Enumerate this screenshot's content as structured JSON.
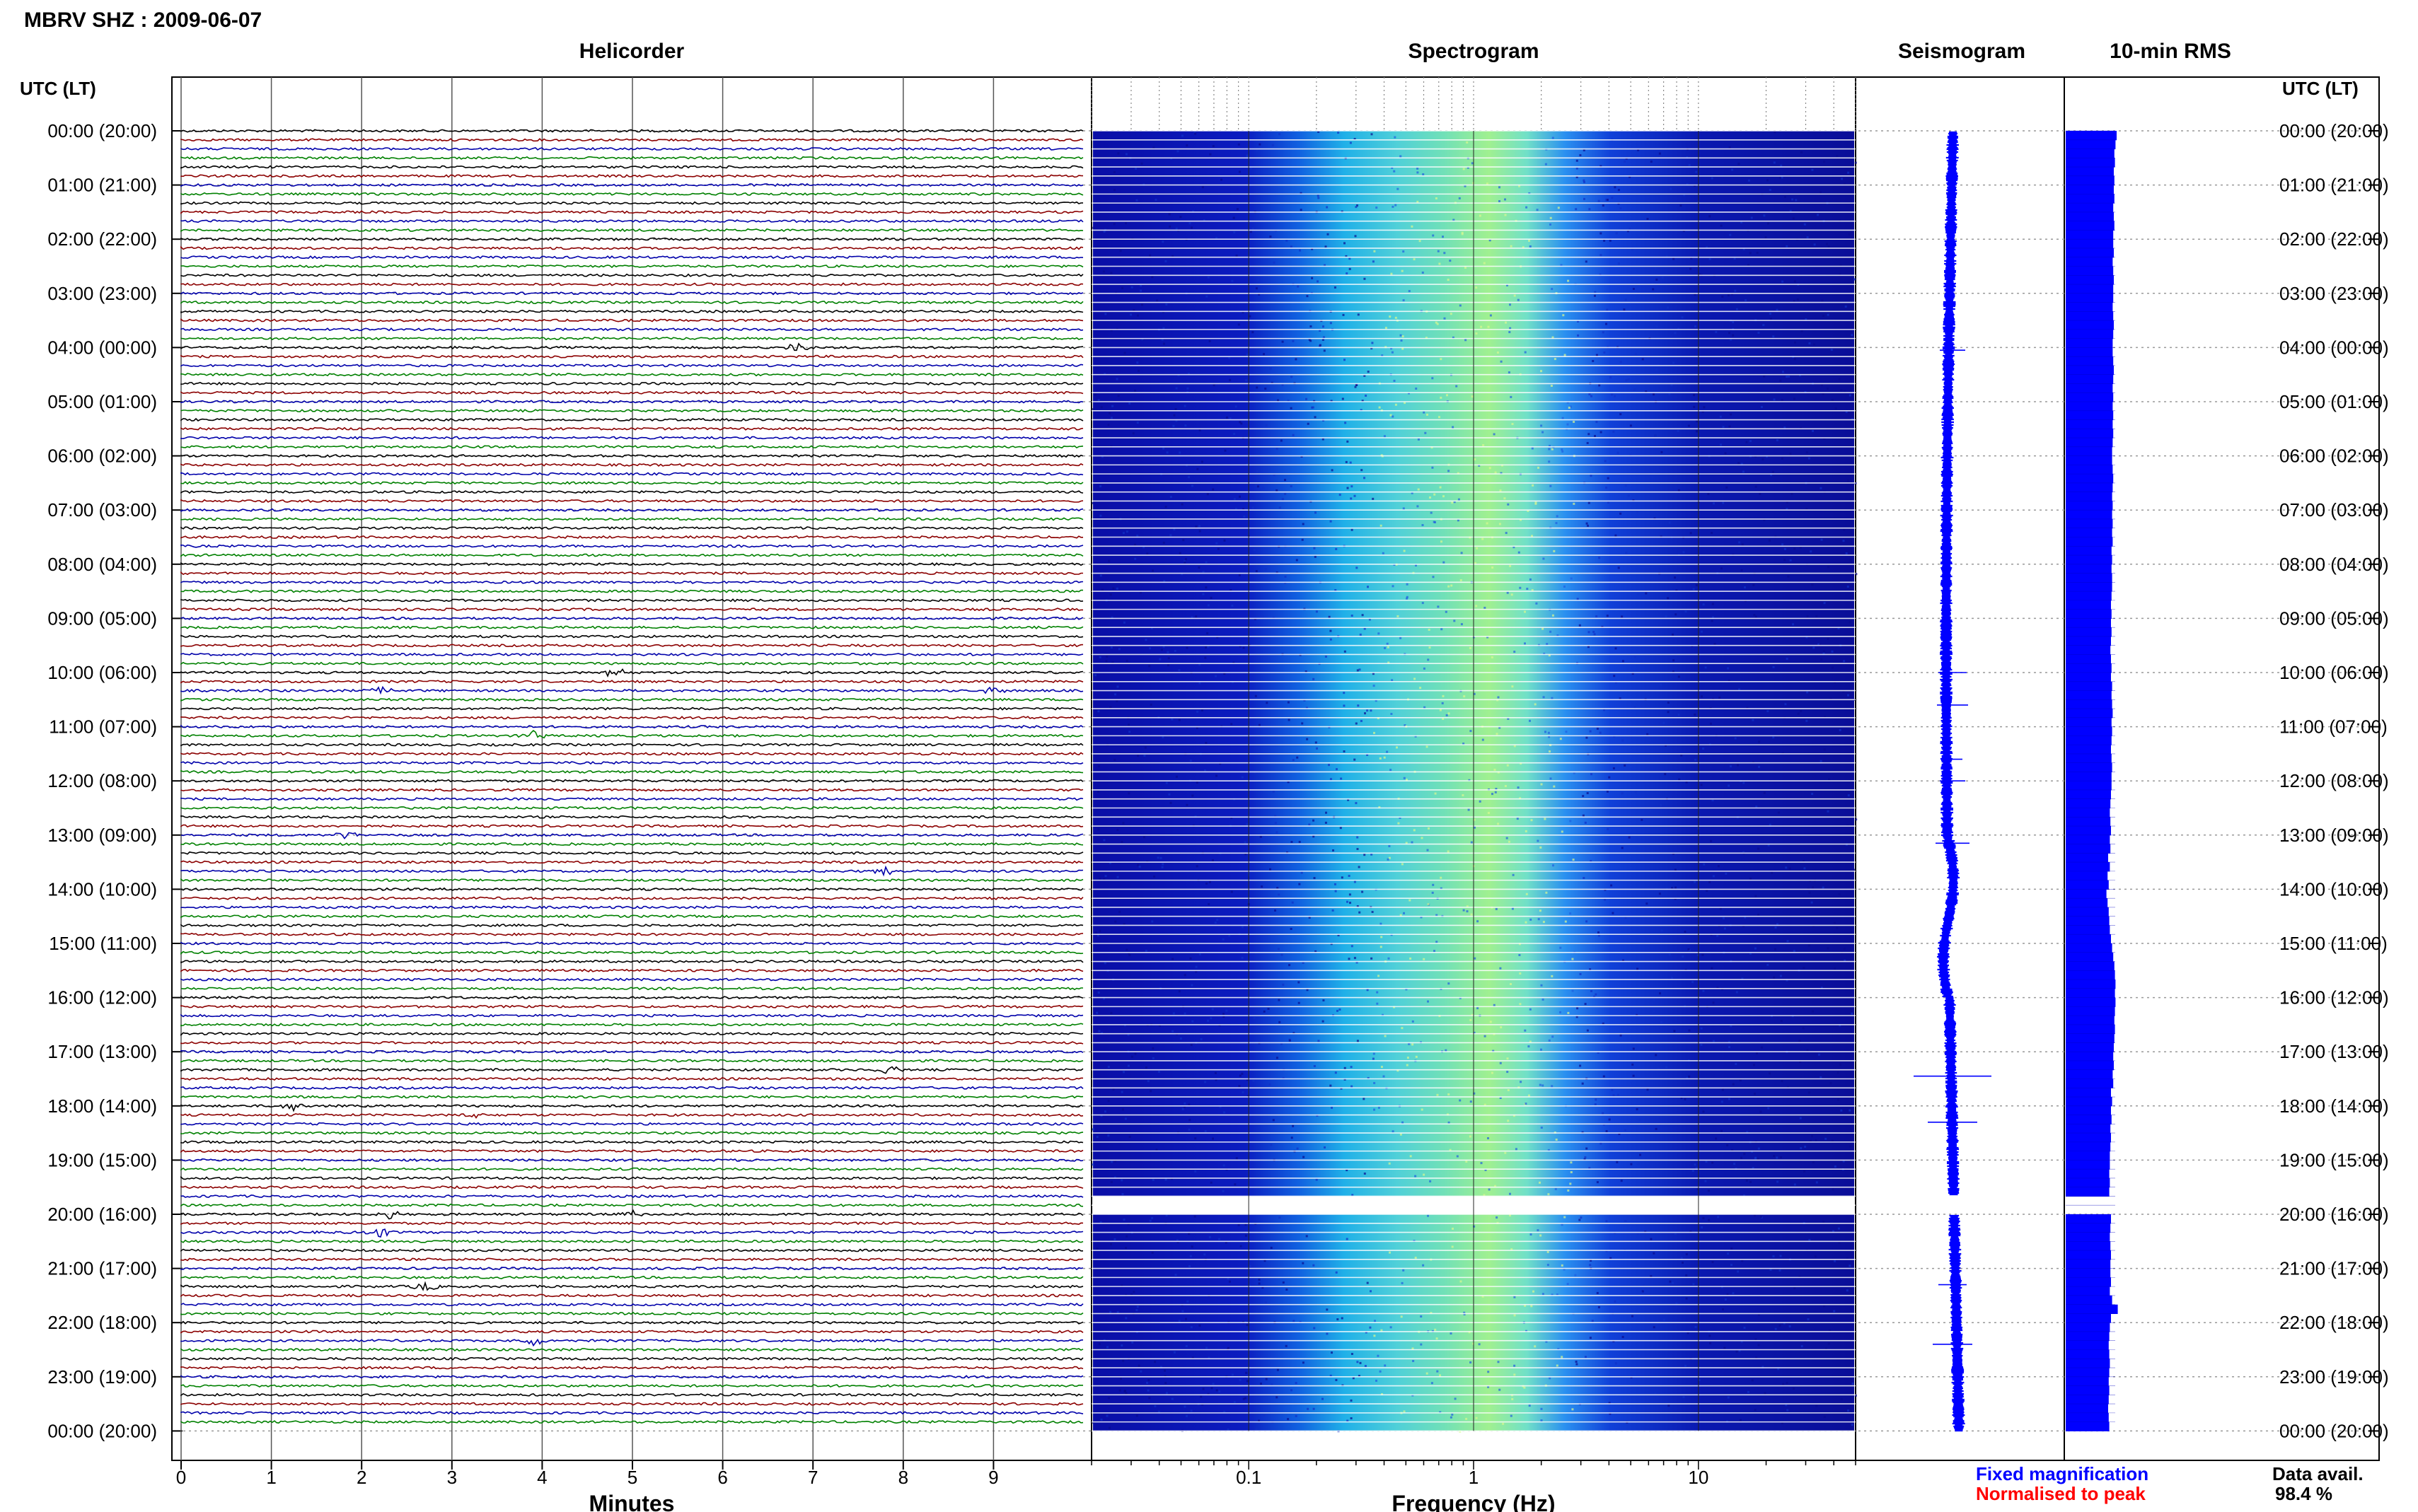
{
  "title": "MBRV SHZ : 2009-06-07",
  "panels": {
    "helicorder": "Helicorder",
    "spectrogram": "Spectrogram",
    "seismogram": "Seismogram",
    "rms": "10-min RMS"
  },
  "time_axis_header_left": "UTC (LT)",
  "time_axis_header_right": "UTC (LT)",
  "time_labels": [
    "00:00 (20:00)",
    "01:00 (21:00)",
    "02:00 (22:00)",
    "03:00 (23:00)",
    "04:00 (00:00)",
    "05:00 (01:00)",
    "06:00 (02:00)",
    "07:00 (03:00)",
    "08:00 (04:00)",
    "09:00 (05:00)",
    "10:00 (06:00)",
    "11:00 (07:00)",
    "12:00 (08:00)",
    "13:00 (09:00)",
    "14:00 (10:00)",
    "15:00 (11:00)",
    "16:00 (12:00)",
    "17:00 (13:00)",
    "18:00 (14:00)",
    "19:00 (15:00)",
    "20:00 (16:00)",
    "21:00 (17:00)",
    "22:00 (18:00)",
    "23:00 (19:00)",
    "00:00 (20:00)"
  ],
  "x_axes": {
    "helicorder": {
      "label": "Minutes",
      "ticks": [
        "0",
        "1",
        "2",
        "3",
        "4",
        "5",
        "6",
        "7",
        "8",
        "9"
      ]
    },
    "spectrogram": {
      "label": "Frequency (Hz)",
      "ticks": [
        "0.1",
        "1",
        "10"
      ]
    }
  },
  "legend": {
    "fixed": "Fixed magnification",
    "normalised": "Normalised to peak",
    "fixed_color": "#0000ff",
    "normalised_color": "#ff0000"
  },
  "data_availability": {
    "label": "Data avail.",
    "value": "98.4 %"
  },
  "colors": {
    "trace_cycle": [
      "#000000",
      "#8b0000",
      "#0000aa",
      "#008000"
    ],
    "spectrogram_low": "#0a10a0",
    "spectrogram_high": "#a8f080",
    "rms_fill": "#0000ff"
  },
  "chart_data": [
    {
      "type": "line",
      "name_panel": "Helicorder",
      "xlabel": "Minutes",
      "xlim": [
        0,
        10
      ],
      "traces_per_hour": 6,
      "hours": 24,
      "events": [
        {
          "hour": 4.0,
          "minute": 6.8
        },
        {
          "hour": 10.0,
          "minute": 4.8
        },
        {
          "hour": 10.33,
          "minute": 2.2
        },
        {
          "hour": 10.33,
          "minute": 9.0
        },
        {
          "hour": 11.17,
          "minute": 3.9
        },
        {
          "hour": 13.0,
          "minute": 1.85
        },
        {
          "hour": 13.67,
          "minute": 7.8
        },
        {
          "hour": 17.33,
          "minute": 7.85
        },
        {
          "hour": 18.0,
          "minute": 1.25
        },
        {
          "hour": 18.17,
          "minute": 3.2
        },
        {
          "hour": 20.0,
          "minute": 2.3
        },
        {
          "hour": 20.0,
          "minute": 5.0
        },
        {
          "hour": 20.33,
          "minute": 2.2
        },
        {
          "hour": 21.33,
          "minute": 2.7
        },
        {
          "hour": 22.33,
          "minute": 3.9
        }
      ]
    },
    {
      "type": "heatmap",
      "name_panel": "Spectrogram",
      "xlabel": "Frequency (Hz)",
      "xscale": "log",
      "xlim": [
        0.02,
        50
      ],
      "peak_band_hz": [
        0.3,
        3
      ],
      "peak_center_hz": 1,
      "gap_hours": [
        19.67,
        20.0
      ]
    },
    {
      "type": "line",
      "name_panel": "Seismogram",
      "note": "10-min averaged waveform trace, gap near 20:00"
    },
    {
      "type": "bar",
      "name_panel": "10-min RMS",
      "orientation": "horizontal",
      "interval_minutes": 10,
      "gap_hours": [
        19.67,
        20.0
      ],
      "values": [
        0.9,
        0.88,
        0.86,
        0.87,
        0.85,
        0.86,
        0.85,
        0.86,
        0.84,
        0.85,
        0.86,
        0.84,
        0.84,
        0.85,
        0.83,
        0.84,
        0.85,
        0.84,
        0.84,
        0.83,
        0.84,
        0.85,
        0.84,
        0.83,
        0.83,
        0.84,
        0.85,
        0.84,
        0.83,
        0.84,
        0.83,
        0.84,
        0.83,
        0.84,
        0.83,
        0.82,
        0.82,
        0.83,
        0.84,
        0.83,
        0.82,
        0.83,
        0.82,
        0.83,
        0.82,
        0.83,
        0.81,
        0.82,
        0.81,
        0.82,
        0.82,
        0.81,
        0.8,
        0.81,
        0.8,
        0.81,
        0.8,
        0.79,
        0.8,
        0.81,
        0.8,
        0.82,
        0.81,
        0.82,
        0.83,
        0.81,
        0.82,
        0.81,
        0.8,
        0.81,
        0.82,
        0.81,
        0.81,
        0.8,
        0.79,
        0.78,
        0.79,
        0.8,
        0.78,
        0.79,
        0.75,
        0.78,
        0.74,
        0.76,
        0.72,
        0.74,
        0.76,
        0.77,
        0.78,
        0.8,
        0.82,
        0.84,
        0.86,
        0.87,
        0.88,
        0.87,
        0.88,
        0.87,
        0.86,
        0.87,
        0.86,
        0.85,
        0.84,
        0.85,
        0.83,
        0.84,
        0.8,
        0.82,
        0.8,
        0.81,
        0.79,
        0.8,
        0.79,
        0.78,
        0.78,
        0.77,
        0.78,
        0.77,
        0.0,
        0.0,
        0.8,
        0.79,
        0.78,
        0.79,
        0.8,
        0.79,
        0.79,
        0.8,
        0.78,
        0.82,
        0.92,
        0.8,
        0.78,
        0.77,
        0.76,
        0.77,
        0.78,
        0.77,
        0.76,
        0.77,
        0.76,
        0.75,
        0.76,
        0.77
      ]
    }
  ]
}
